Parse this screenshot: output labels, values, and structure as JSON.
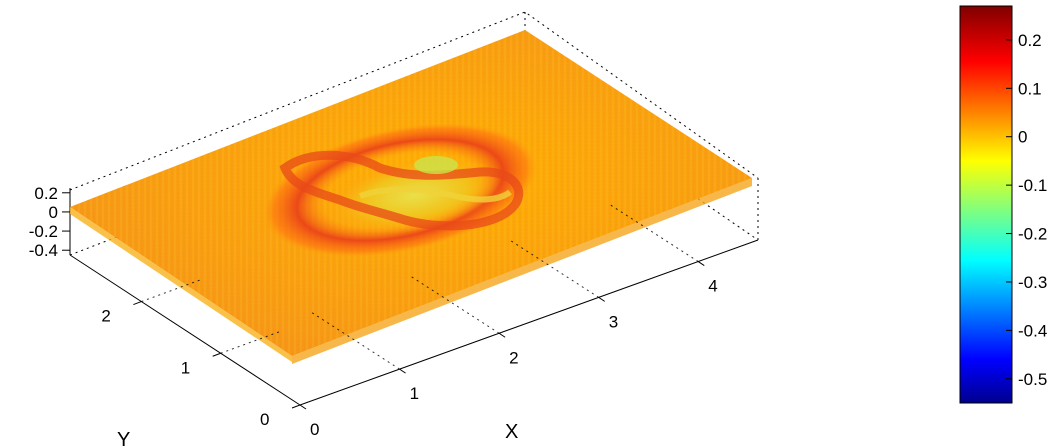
{
  "chart_data": {
    "type": "surface",
    "title": "",
    "xlabel": "X",
    "ylabel": "Y",
    "zlabel": "",
    "xlim": [
      0,
      4.6
    ],
    "ylim": [
      0,
      2.9
    ],
    "zlim": [
      -0.45,
      0.25
    ],
    "x_ticks": [
      "0",
      "1",
      "2",
      "3",
      "4"
    ],
    "y_ticks": [
      "0",
      "1",
      "2"
    ],
    "z_ticks": [
      "0.2",
      "0",
      "-0.2",
      "-0.4"
    ],
    "colorbar": {
      "colormap": "jet",
      "min": -0.55,
      "max": 0.27,
      "ticks": [
        "0.2",
        "0.1",
        "0",
        "-0.1",
        "-0.2",
        "-0.3",
        "-0.4",
        "-0.5"
      ],
      "colors": [
        "#00008f",
        "#0000ff",
        "#00ffff",
        "#ffff00",
        "#ff0000",
        "#800000"
      ]
    },
    "surface": {
      "base_z": 0.0,
      "noise": "high-frequency",
      "feature": "ring-shaped raised ridge with central depression near x≈1.8, y≈1.4",
      "ridge_peak_z": 0.12,
      "center_z": -0.08
    },
    "grid": false,
    "box": true,
    "colorbar_position": "right"
  }
}
